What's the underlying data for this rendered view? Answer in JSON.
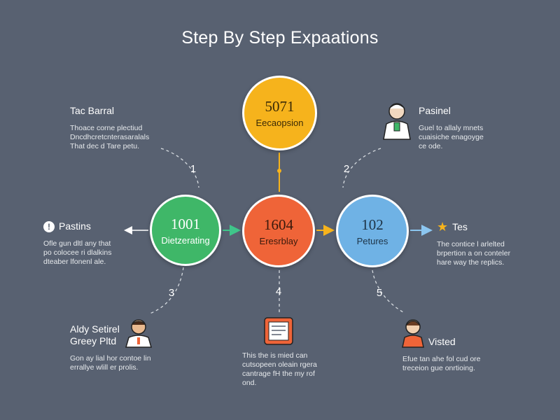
{
  "title": "Step By Step Expaations",
  "nodes": {
    "top": {
      "number": "5071",
      "label": "Eecaopsion"
    },
    "left": {
      "number": "1001",
      "label": "Dietzerating"
    },
    "mid": {
      "number": "1604",
      "label": "Eresrblay"
    },
    "right": {
      "number": "102",
      "label": "Petures"
    }
  },
  "steps": [
    "1",
    "2",
    "3",
    "4",
    "5"
  ],
  "blocks": {
    "top_left": {
      "heading": "Tac Barral",
      "body": [
        "Thoace corne plectiud",
        "Dncdhcretcnterasaralals",
        "That dec d Tare petu."
      ]
    },
    "top_right": {
      "heading": "Pasinel",
      "body": [
        "Guel to allaly mnets",
        "cuaisiche enagoyge",
        "ce ode."
      ]
    },
    "mid_left": {
      "heading": "Pastins",
      "body": [
        "Ofle gun dltl any that",
        "po colocee ri dlalkins",
        "dteaber lfonenl ale."
      ]
    },
    "mid_right": {
      "heading": "Tes",
      "body": [
        "The contice l arlelted",
        "brpertion a on conteler",
        "hare way the replics."
      ]
    },
    "bot_left": {
      "heading": [
        "Aldy Setirel",
        "Greey Pltd"
      ],
      "body": [
        "Gon ay lial hor contoe lin",
        "errallye wlill er prolis."
      ]
    },
    "bot_center": {
      "body": [
        "This the is mied can",
        "cutsopeen oleain rgera",
        "cantrage fH the my rof",
        "ond."
      ]
    },
    "bot_right": {
      "heading": "Visted",
      "body": [
        "Efue tan ahe fol cud ore",
        "treceion gue onrtioing."
      ]
    }
  },
  "icons": {
    "info": "!",
    "star": "★"
  },
  "colors": {
    "background": "#586171",
    "top": "#f6b31c",
    "left": "#3fb768",
    "mid": "#ef6438",
    "right": "#6fb2e5",
    "arrow": "#f6b31c"
  }
}
